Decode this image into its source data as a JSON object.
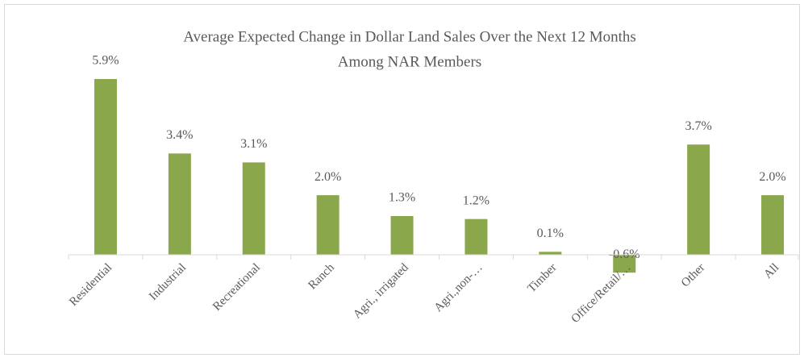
{
  "chart_data": {
    "type": "bar",
    "title_lines": [
      "Average Expected Change in Dollar Land Sales Over the Next 12 Months",
      "Among NAR Members"
    ],
    "categories": [
      "Residential",
      "Industrial",
      "Recreational",
      "Ranch",
      "Agri., irrigated",
      "Agri.,non-…",
      "Timber",
      "Office/Retail/…",
      "Other",
      "All"
    ],
    "values": [
      5.9,
      3.4,
      3.1,
      2.0,
      1.3,
      1.2,
      0.1,
      -0.6,
      3.7,
      2.0
    ],
    "value_labels": [
      "5.9%",
      "3.4%",
      "3.1%",
      "2.0%",
      "1.3%",
      "1.2%",
      "0.1%",
      "-0.6%",
      "3.7%",
      "2.0%"
    ],
    "color": "#8aa84b"
  }
}
